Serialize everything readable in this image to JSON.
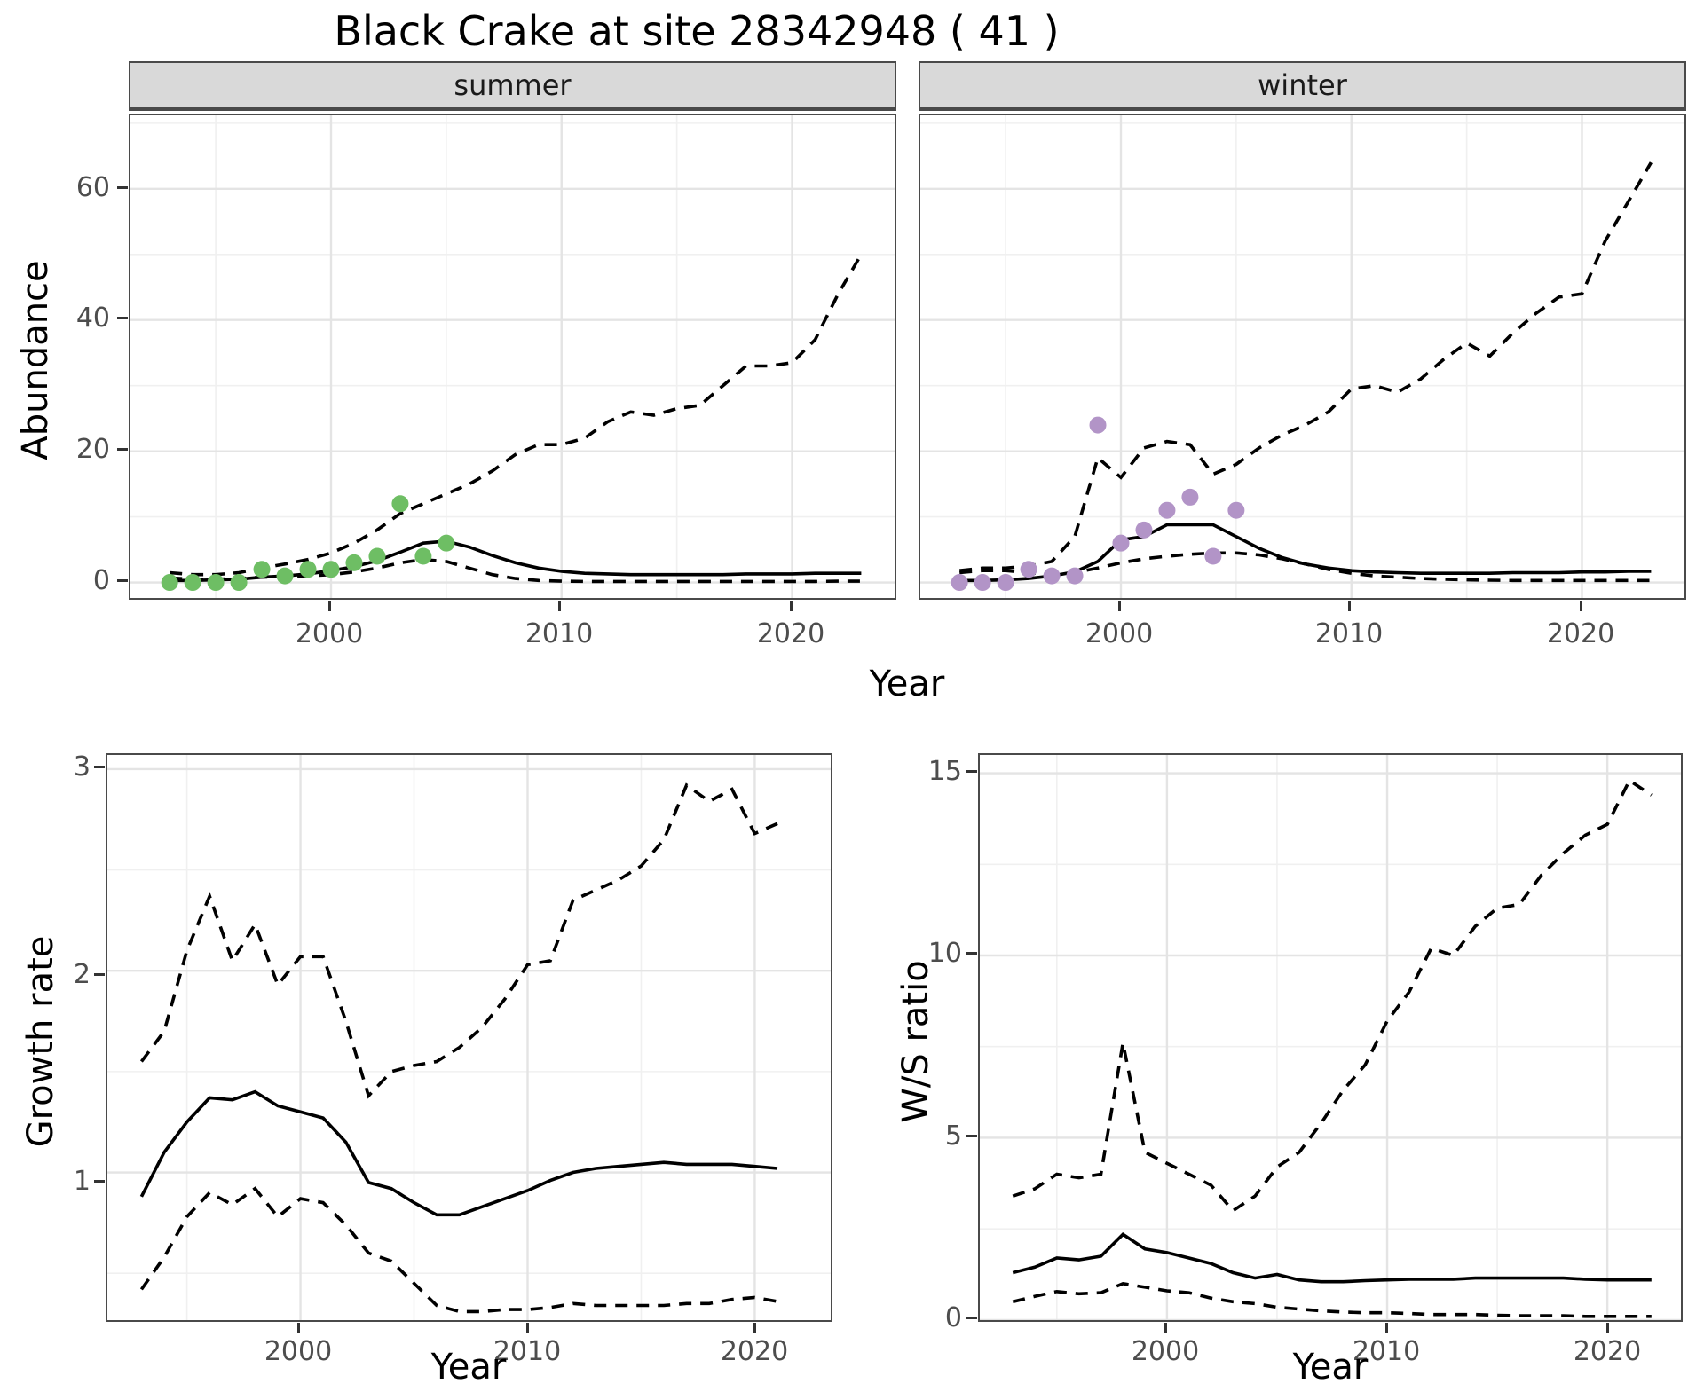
{
  "title": "Black Crake at site 28342948 ( 41 )",
  "labels": {
    "y_axis_top": "Abundance",
    "x_axis_top": "Year",
    "y_axis_growth": "Growth rate",
    "x_axis_growth": "Year",
    "y_axis_ws": "W/S ratio",
    "x_axis_ws": "Year"
  },
  "colors": {
    "summer_points": "#6ebe64",
    "winter_points": "#b294c7",
    "line": "#000000",
    "strip_bg": "#d9d9d9",
    "grid_major": "#e4e4e4",
    "grid_minor": "#f0f0f0"
  },
  "chart_data": [
    {
      "id": "abundance_summer",
      "type": "line",
      "facet_label": "summer",
      "xlabel": "Year",
      "ylabel": "Abundance",
      "xlim": [
        1991.3,
        2024.6
      ],
      "ylim": [
        -2.9,
        71.2
      ],
      "x_major": [
        2000,
        2010,
        2020
      ],
      "x_minor": [
        1995,
        2005,
        2015
      ],
      "y_major": [
        0,
        20,
        40,
        60
      ],
      "y_minor": [
        10,
        30,
        50,
        70
      ],
      "x_tick_labels": [
        "2000",
        "2010",
        "2020"
      ],
      "y_tick_labels": [
        "60",
        "40",
        "20",
        "0"
      ],
      "years": [
        1993,
        1994,
        1995,
        1996,
        1997,
        1998,
        1999,
        2000,
        2001,
        2002,
        2003,
        2004,
        2005,
        2006,
        2007,
        2008,
        2009,
        2010,
        2011,
        2012,
        2013,
        2014,
        2015,
        2016,
        2017,
        2018,
        2019,
        2020,
        2021,
        2022,
        2023
      ],
      "series": [
        {
          "name": "upper_ci",
          "style": "dashed",
          "values": [
            1.5,
            1.2,
            1.2,
            1.5,
            2.2,
            2.8,
            3.5,
            4.5,
            6,
            8,
            10.5,
            12,
            13.5,
            15,
            17,
            19.5,
            21,
            21,
            22,
            24.5,
            26,
            25.5,
            26.5,
            27,
            30,
            33,
            33,
            33.5,
            37,
            44,
            50
          ]
        },
        {
          "name": "median",
          "style": "solid",
          "values": [
            0.3,
            0.3,
            0.4,
            0.5,
            0.8,
            1.0,
            1.3,
            1.8,
            2.4,
            3.3,
            4.6,
            6.0,
            6.3,
            5.4,
            4.1,
            3.0,
            2.2,
            1.7,
            1.4,
            1.3,
            1.2,
            1.2,
            1.2,
            1.2,
            1.2,
            1.3,
            1.3,
            1.3,
            1.4,
            1.4,
            1.4
          ]
        },
        {
          "name": "lower_ci",
          "style": "dashed",
          "values": [
            0.7,
            0.5,
            0.5,
            0.6,
            0.8,
            0.9,
            1.0,
            1.2,
            1.6,
            2.2,
            3.0,
            3.5,
            3.2,
            2.2,
            1.2,
            0.6,
            0.3,
            0.2,
            0.15,
            0.15,
            0.15,
            0.15,
            0.15,
            0.15,
            0.15,
            0.15,
            0.15,
            0.15,
            0.15,
            0.2,
            0.2
          ]
        },
        {
          "name": "observed_counts",
          "style": "points",
          "color": "#6ebe64",
          "x": [
            1993,
            1994,
            1995,
            1996,
            1997,
            1998,
            1999,
            2000,
            2001,
            2002,
            2003,
            2004,
            2005
          ],
          "values": [
            0,
            0,
            0,
            0,
            2,
            1,
            2,
            2,
            3,
            4,
            12,
            4,
            6
          ]
        }
      ]
    },
    {
      "id": "abundance_winter",
      "type": "line",
      "facet_label": "winter",
      "xlabel": "Year",
      "ylabel": "Abundance",
      "xlim": [
        1991.3,
        2024.6
      ],
      "ylim": [
        -2.9,
        71.2
      ],
      "x_major": [
        2000,
        2010,
        2020
      ],
      "x_minor": [
        1995,
        2005,
        2015
      ],
      "y_major": [
        0,
        20,
        40,
        60
      ],
      "y_minor": [
        10,
        30,
        50,
        70
      ],
      "x_tick_labels": [
        "2000",
        "2010",
        "2020"
      ],
      "y_tick_labels": [],
      "years": [
        1993,
        1994,
        1995,
        1996,
        1997,
        1998,
        1999,
        2000,
        2001,
        2002,
        2003,
        2004,
        2005,
        2006,
        2007,
        2008,
        2009,
        2010,
        2011,
        2012,
        2013,
        2014,
        2015,
        2016,
        2017,
        2018,
        2019,
        2020,
        2021,
        2022,
        2023
      ],
      "series": [
        {
          "name": "upper_ci",
          "style": "dashed",
          "values": [
            1.8,
            2.2,
            2.2,
            2.5,
            3.2,
            7,
            19,
            16,
            20.5,
            21.5,
            21,
            16.5,
            18,
            20.5,
            22.5,
            24,
            26,
            29.5,
            30,
            29,
            31,
            34,
            36.5,
            34.5,
            38,
            41,
            43.5,
            44,
            52,
            58,
            64
          ]
        },
        {
          "name": "median",
          "style": "solid",
          "values": [
            0.3,
            0.3,
            0.4,
            0.6,
            1.0,
            1.6,
            3.2,
            6.5,
            7.0,
            8.8,
            8.8,
            8.8,
            7.0,
            5.2,
            3.8,
            2.8,
            2.2,
            1.8,
            1.6,
            1.5,
            1.4,
            1.4,
            1.4,
            1.4,
            1.5,
            1.5,
            1.5,
            1.6,
            1.6,
            1.7,
            1.7
          ]
        },
        {
          "name": "lower_ci",
          "style": "dashed",
          "values": [
            1.5,
            1.8,
            1.8,
            1.5,
            1.2,
            1.5,
            2.2,
            3.0,
            3.6,
            4.0,
            4.3,
            4.5,
            4.5,
            4.2,
            3.6,
            2.8,
            2.0,
            1.4,
            1.0,
            0.8,
            0.6,
            0.5,
            0.4,
            0.35,
            0.3,
            0.3,
            0.3,
            0.3,
            0.3,
            0.3,
            0.3
          ]
        },
        {
          "name": "observed_counts",
          "style": "points",
          "color": "#b294c7",
          "x": [
            1993,
            1994,
            1995,
            1996,
            1997,
            1998,
            1999,
            2000,
            2001,
            2002,
            2003,
            2004,
            2005
          ],
          "values": [
            0,
            0,
            0,
            2,
            1,
            1,
            24,
            6,
            8,
            11,
            13,
            4,
            11
          ]
        }
      ]
    },
    {
      "id": "growth_rate",
      "type": "line",
      "facet_label": "",
      "xlabel": "Year",
      "ylabel": "Growth rate",
      "xlim": [
        1991.5,
        2023.5
      ],
      "ylim": [
        0.25,
        3.07
      ],
      "x_major": [
        2000,
        2010,
        2020
      ],
      "x_minor": [
        1995,
        2005,
        2015
      ],
      "y_major": [
        1,
        2,
        3
      ],
      "y_minor": [
        0.5,
        1.5,
        2.5
      ],
      "x_tick_labels": [
        "2000",
        "2010",
        "2020"
      ],
      "y_tick_labels": [
        "3",
        "2",
        "1"
      ],
      "years": [
        1993,
        1994,
        1995,
        1996,
        1997,
        1998,
        1999,
        2000,
        2001,
        2002,
        2003,
        2004,
        2005,
        2006,
        2007,
        2008,
        2009,
        2010,
        2011,
        2012,
        2013,
        2014,
        2015,
        2016,
        2017,
        2018,
        2019,
        2020,
        2021
      ],
      "series": [
        {
          "name": "upper_ci",
          "style": "dashed",
          "values": [
            1.55,
            1.7,
            2.1,
            2.37,
            2.05,
            2.23,
            1.93,
            2.07,
            2.07,
            1.75,
            1.38,
            1.5,
            1.53,
            1.55,
            1.62,
            1.72,
            1.86,
            2.03,
            2.05,
            2.35,
            2.4,
            2.45,
            2.52,
            2.65,
            2.92,
            2.84,
            2.9,
            2.68,
            2.73
          ]
        },
        {
          "name": "median",
          "style": "solid",
          "values": [
            0.88,
            1.1,
            1.25,
            1.37,
            1.36,
            1.4,
            1.33,
            1.3,
            1.27,
            1.15,
            0.95,
            0.92,
            0.85,
            0.79,
            0.79,
            0.83,
            0.87,
            0.91,
            0.96,
            1.0,
            1.02,
            1.03,
            1.04,
            1.05,
            1.04,
            1.04,
            1.04,
            1.03,
            1.02
          ]
        },
        {
          "name": "lower_ci",
          "style": "dashed",
          "values": [
            0.42,
            0.58,
            0.78,
            0.9,
            0.84,
            0.92,
            0.78,
            0.87,
            0.85,
            0.74,
            0.6,
            0.56,
            0.45,
            0.34,
            0.31,
            0.31,
            0.32,
            0.32,
            0.33,
            0.35,
            0.34,
            0.34,
            0.34,
            0.34,
            0.35,
            0.35,
            0.37,
            0.38,
            0.36
          ]
        }
      ]
    },
    {
      "id": "ws_ratio",
      "type": "line",
      "facet_label": "",
      "xlabel": "Year",
      "ylabel": "W/S ratio",
      "xlim": [
        1991.5,
        2023.5
      ],
      "ylim": [
        -0.1,
        15.5
      ],
      "x_major": [
        2000,
        2010,
        2020
      ],
      "x_minor": [
        1995,
        2005,
        2015
      ],
      "y_major": [
        0,
        5,
        10,
        15
      ],
      "y_minor": [
        2.5,
        7.5,
        12.5
      ],
      "x_tick_labels": [
        "2000",
        "2010",
        "2020"
      ],
      "y_tick_labels": [
        "15",
        "10",
        "5",
        "0"
      ],
      "years": [
        1993,
        1994,
        1995,
        1996,
        1997,
        1998,
        1999,
        2000,
        2001,
        2002,
        2003,
        2004,
        2005,
        2006,
        2007,
        2008,
        2009,
        2010,
        2011,
        2012,
        2013,
        2014,
        2015,
        2016,
        2017,
        2018,
        2019,
        2020,
        2021,
        2022
      ],
      "series": [
        {
          "name": "upper_ci",
          "style": "dashed",
          "values": [
            3.4,
            3.6,
            4.0,
            3.9,
            4.0,
            7.6,
            4.6,
            4.3,
            4.0,
            3.7,
            3.0,
            3.4,
            4.2,
            4.6,
            5.4,
            6.3,
            7.0,
            8.2,
            9.0,
            10.2,
            10.0,
            10.8,
            11.3,
            11.4,
            12.2,
            12.8,
            13.3,
            13.6,
            14.8,
            14.4
          ]
        },
        {
          "name": "median",
          "style": "solid",
          "values": [
            1.3,
            1.45,
            1.7,
            1.65,
            1.75,
            2.35,
            1.95,
            1.85,
            1.7,
            1.55,
            1.3,
            1.15,
            1.25,
            1.1,
            1.05,
            1.05,
            1.08,
            1.1,
            1.12,
            1.12,
            1.12,
            1.15,
            1.15,
            1.15,
            1.15,
            1.15,
            1.12,
            1.1,
            1.1,
            1.1
          ]
        },
        {
          "name": "lower_ci",
          "style": "dashed",
          "values": [
            0.5,
            0.65,
            0.78,
            0.72,
            0.75,
            1.0,
            0.9,
            0.8,
            0.75,
            0.6,
            0.5,
            0.45,
            0.35,
            0.3,
            0.25,
            0.22,
            0.2,
            0.2,
            0.18,
            0.15,
            0.15,
            0.15,
            0.13,
            0.12,
            0.12,
            0.12,
            0.1,
            0.1,
            0.1,
            0.1
          ]
        }
      ]
    }
  ]
}
